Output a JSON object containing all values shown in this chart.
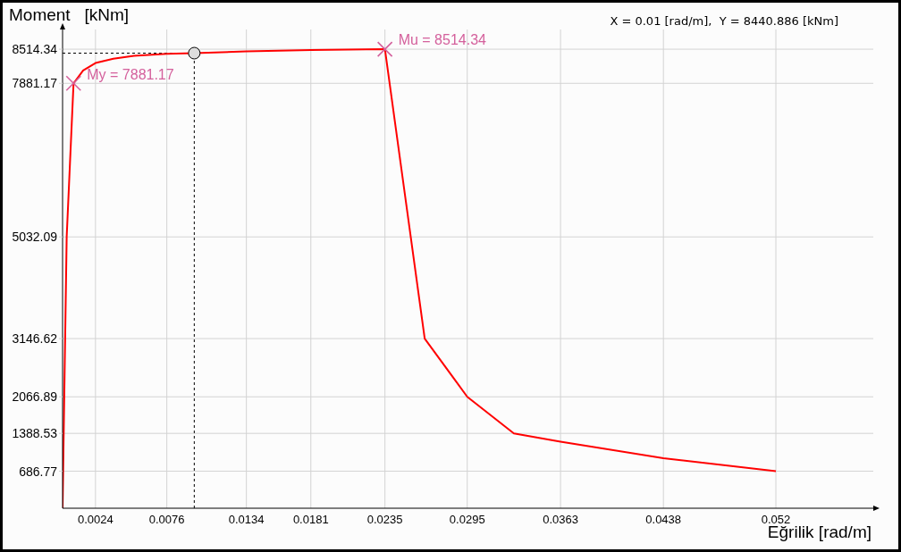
{
  "chart_data": {
    "type": "line",
    "xlabel": "Eğrilik [rad/m]",
    "ylabel": "Moment   [kNm]",
    "series": [
      {
        "color": "#ff0000",
        "x": [
          0,
          0.0003,
          0.0008,
          0.0015,
          0.0024,
          0.0037,
          0.0052,
          0.0076,
          0.0096,
          0.0134,
          0.0181,
          0.0235,
          0.0264,
          0.0295,
          0.0329,
          0.0363,
          0.0438,
          0.052
        ],
        "values": [
          0,
          5032.09,
          7881.17,
          8120,
          8258,
          8336,
          8391,
          8430,
          8440.886,
          8475,
          8500,
          8514.34,
          3146.62,
          2066.89,
          1388.53,
          1235,
          928,
          686.77
        ]
      },
      {
        "type": "scatter",
        "color": "#d4609c",
        "marker": "cross",
        "x": [
          0.0008,
          0.0235
        ],
        "values": [
          7881.17,
          8514.34
        ],
        "value_labels": [
          "My = 7881.17",
          "Mu = 8514.34"
        ]
      },
      {
        "type": "scatter",
        "color": "#dddddd",
        "marker": "circle",
        "x": [
          0.0096
        ],
        "values": [
          8440.886
        ]
      }
    ],
    "xlim": [
      0,
      0.0591
    ],
    "ylim": [
      0,
      8880
    ],
    "xticks": [
      0.0024,
      0.0076,
      0.0134,
      0.0181,
      0.0235,
      0.0295,
      0.0363,
      0.0438,
      0.052
    ],
    "yticks": [
      686.77,
      1388.53,
      2066.89,
      3146.62,
      5032.09,
      7881.17,
      8514.34
    ],
    "grid": true,
    "ref_lines": [
      {
        "axis": "x",
        "value": 0.0096,
        "color": "#000000",
        "line_style": "dashed"
      },
      {
        "axis": "y",
        "value": 8440.886,
        "color": "#000000",
        "line_style": "dashed"
      }
    ],
    "annotations": [
      "X = 0.01 [rad/m],  Y = 8440.886 [kNm]"
    ]
  }
}
